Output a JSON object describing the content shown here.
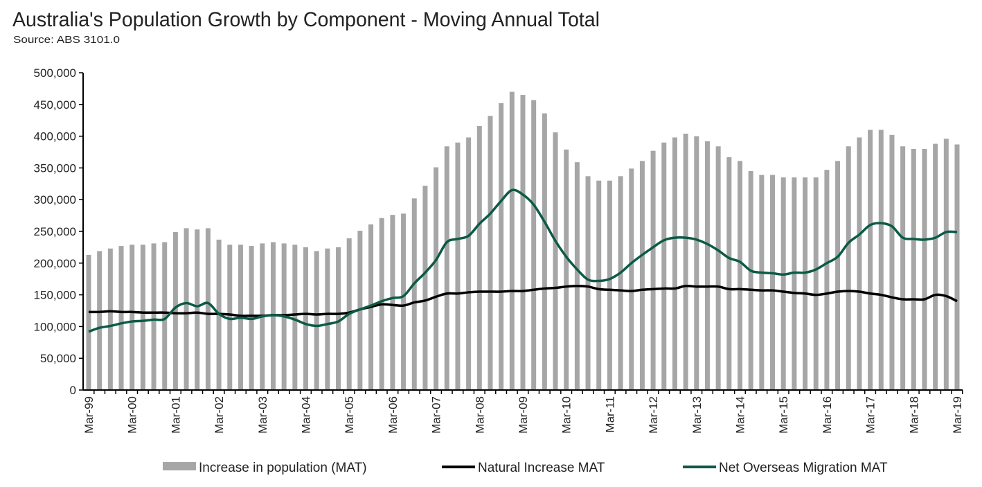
{
  "chart_data": {
    "type": "bar+line",
    "title": "Australia's Population Growth by Component - Moving Annual Total",
    "subtitle": "Source: ABS 3101.0",
    "xlabel": "",
    "ylabel": "",
    "ylim": [
      0,
      500000
    ],
    "yticks": [
      "0",
      "50,000",
      "100,000",
      "150,000",
      "200,000",
      "250,000",
      "300,000",
      "350,000",
      "400,000",
      "450,000",
      "500,000"
    ],
    "xtick_labels": [
      "Mar-99",
      "Mar-00",
      "Mar-01",
      "Mar-02",
      "Mar-03",
      "Mar-04",
      "Mar-05",
      "Mar-06",
      "Mar-07",
      "Mar-08",
      "Mar-09",
      "Mar-10",
      "Mar-11",
      "Mar-12",
      "Mar-13",
      "Mar-14",
      "Mar-15",
      "Mar-16",
      "Mar-17",
      "Mar-18",
      "Mar-19"
    ],
    "x_frequency": "quarterly, Mar-99 to Mar-19",
    "grid": false,
    "legend_placement": "bottom",
    "series": [
      {
        "name": "Increase in population (MAT)",
        "type": "bar",
        "color": "#a6a6a6",
        "values": [
          213000,
          219000,
          223000,
          227000,
          229000,
          229000,
          231000,
          233000,
          249000,
          255000,
          253000,
          255000,
          237000,
          229000,
          229000,
          227000,
          231000,
          233000,
          231000,
          229000,
          225000,
          219000,
          223000,
          225000,
          239000,
          251000,
          261000,
          271000,
          276000,
          278000,
          302000,
          322000,
          351000,
          384000,
          390000,
          398000,
          416000,
          432000,
          452000,
          470000,
          465000,
          457000,
          436000,
          406000,
          379000,
          359000,
          337000,
          330000,
          330000,
          337000,
          349000,
          361000,
          377000,
          390000,
          398000,
          404000,
          400000,
          392000,
          384000,
          367000,
          361000,
          345000,
          339000,
          339000,
          335000,
          335000,
          335000,
          335000,
          347000,
          361000,
          384000,
          398000,
          410000,
          410000,
          402000,
          384000,
          380000,
          380000,
          388000,
          396000,
          387000
        ]
      },
      {
        "name": "Natural Increase MAT",
        "type": "line",
        "color": "#000000",
        "values": [
          123000,
          123000,
          124000,
          123000,
          123000,
          122000,
          122000,
          122000,
          121000,
          121000,
          122000,
          120000,
          120000,
          119000,
          117000,
          117000,
          117000,
          118000,
          118000,
          119000,
          120000,
          119000,
          120000,
          120000,
          122000,
          127000,
          131000,
          135000,
          134000,
          133000,
          138000,
          141000,
          147000,
          152000,
          152000,
          154000,
          155000,
          155000,
          155000,
          156000,
          156000,
          158000,
          160000,
          161000,
          163000,
          164000,
          163000,
          159000,
          158000,
          157000,
          156000,
          158000,
          159000,
          160000,
          160000,
          164000,
          163000,
          163000,
          163000,
          159000,
          159000,
          158000,
          157000,
          157000,
          155000,
          153000,
          152000,
          150000,
          152000,
          155000,
          156000,
          155000,
          152000,
          150000,
          146000,
          143000,
          143000,
          143000,
          150000,
          148000,
          140000
        ]
      },
      {
        "name": "Net Overseas Migration MAT",
        "type": "line",
        "color": "#0b5a45",
        "values": [
          92000,
          98000,
          101000,
          105000,
          108000,
          109000,
          111000,
          112000,
          130000,
          137000,
          132000,
          137000,
          120000,
          112000,
          114000,
          112000,
          116000,
          118000,
          116000,
          111000,
          104000,
          101000,
          104000,
          108000,
          120000,
          127000,
          133000,
          140000,
          145000,
          148000,
          168000,
          185000,
          205000,
          233000,
          238000,
          243000,
          262000,
          278000,
          298000,
          315000,
          308000,
          292000,
          265000,
          235000,
          210000,
          190000,
          174000,
          172000,
          175000,
          185000,
          200000,
          213000,
          225000,
          236000,
          240000,
          240000,
          237000,
          230000,
          220000,
          208000,
          202000,
          188000,
          185000,
          184000,
          182000,
          185000,
          185000,
          190000,
          200000,
          210000,
          232000,
          245000,
          260000,
          263000,
          258000,
          240000,
          238000,
          237000,
          240000,
          249000,
          249000
        ]
      }
    ]
  }
}
